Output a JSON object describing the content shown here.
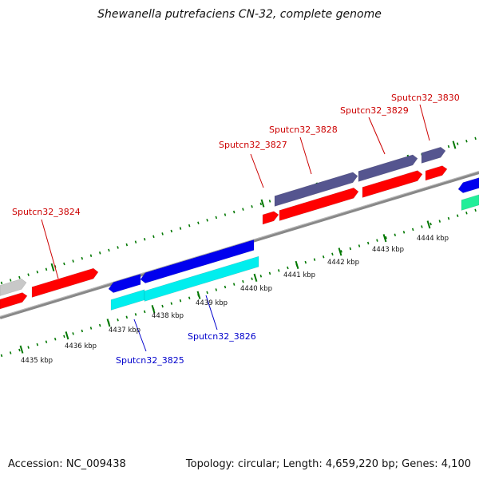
{
  "title": "Shewanella putrefaciens CN-32, complete genome",
  "footer": {
    "accession": "Accession: NC_009438",
    "summary": "Topology: circular; Length: 4,659,220 bp; Genes: 4,100"
  },
  "colors": {
    "forward_cds": "#ff0000",
    "reverse_cds": "#0000ee",
    "forward_track_2": "#55558f",
    "reverse_track_2": "#00eeee",
    "gray_gene": "#c8c8c8",
    "teal_gene": "#22ee99",
    "tick": "#007700",
    "backbone": "#888888",
    "forward_label": "#cc0000",
    "reverse_label": "#0000cc"
  },
  "scale_labels": {
    "inner": [
      "4435 kbp",
      "4436 kbp",
      "4437 kbp",
      "4438 kbp",
      "4439 kbp",
      "4440 kbp"
    ],
    "outer": [
      "4441 kbp",
      "4442 kbp",
      "4443 kbp",
      "4444 kbp"
    ]
  },
  "gene_labels": {
    "forward": [
      "Sputcn32_3824",
      "Sputcn32_3827",
      "Sputcn32_3828",
      "Sputcn32_3829",
      "Sputcn32_3830"
    ],
    "reverse": [
      "Sputcn32_3825",
      "Sputcn32_3826"
    ]
  }
}
